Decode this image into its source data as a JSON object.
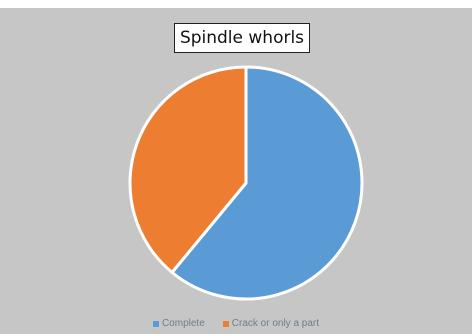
{
  "chart_data": {
    "type": "pie",
    "title": "Spindle whorls",
    "categories": [
      "Complete",
      "Crack or only a part"
    ],
    "values": [
      61,
      39
    ],
    "colors": [
      "#5b9bd5",
      "#ed7d31"
    ],
    "legend_position": "bottom"
  },
  "colors": {
    "background": "#c6c6c6",
    "slice_border": "#ffffff"
  }
}
